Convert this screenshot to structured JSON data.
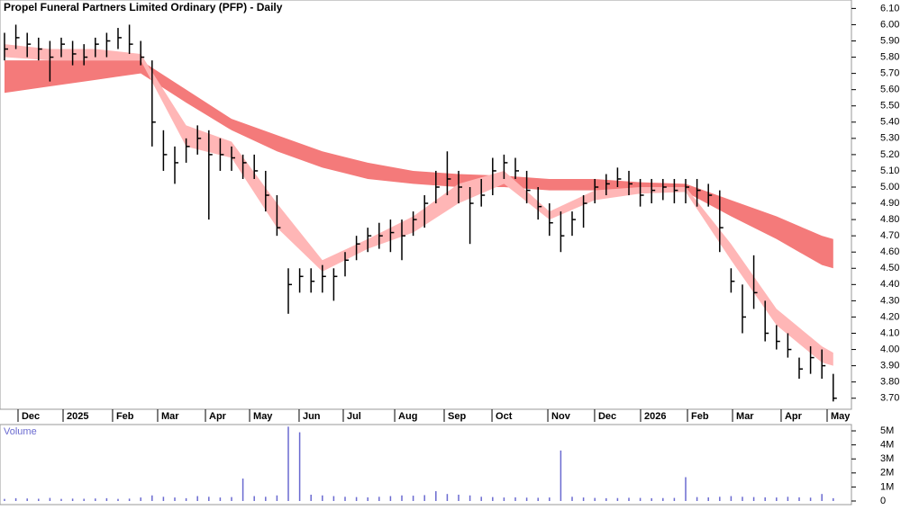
{
  "chart_data": [
    {
      "type": "ohlc",
      "title": "Propel Funeral Partners Limited Ordinary (PFP) - Daily",
      "color": "#000000",
      "high": [
        5.95,
        6.0,
        5.95,
        5.92,
        5.9,
        5.92,
        5.9,
        5.88,
        5.92,
        5.95,
        5.98,
        6.0,
        5.9,
        5.78,
        5.35,
        5.25,
        5.3,
        5.38,
        5.35,
        5.3,
        5.25,
        5.2,
        5.2,
        5.1,
        4.95,
        4.5,
        4.5,
        4.5,
        4.52,
        4.5,
        4.6,
        4.7,
        4.75,
        4.78,
        4.8,
        4.8,
        4.85,
        4.95,
        5.1,
        5.22,
        5.1,
        5.0,
        5.05,
        5.18,
        5.2,
        5.18,
        5.1,
        5.0,
        4.9,
        4.85,
        4.85,
        4.95,
        5.05,
        5.08,
        5.12,
        5.1,
        5.05,
        5.05,
        5.05,
        5.05,
        5.05,
        5.05,
        5.02,
        4.98,
        4.5,
        4.4,
        4.58,
        4.3,
        4.15,
        4.1,
        3.95,
        4.02,
        4.0,
        3.85
      ],
      "low": [
        5.78,
        5.85,
        5.8,
        5.78,
        5.65,
        5.8,
        5.75,
        5.75,
        5.8,
        5.8,
        5.85,
        5.82,
        5.75,
        5.25,
        5.1,
        5.02,
        5.15,
        5.2,
        4.8,
        5.1,
        5.1,
        5.05,
        5.05,
        4.85,
        4.7,
        4.22,
        4.35,
        4.35,
        4.35,
        4.3,
        4.45,
        4.55,
        4.6,
        4.62,
        4.6,
        4.55,
        4.7,
        4.75,
        4.9,
        4.95,
        4.9,
        4.65,
        4.88,
        4.95,
        5.05,
        5.05,
        4.9,
        4.8,
        4.7,
        4.6,
        4.7,
        4.75,
        4.9,
        4.95,
        5.0,
        4.95,
        4.88,
        4.9,
        4.92,
        4.9,
        4.9,
        4.88,
        4.88,
        4.6,
        4.35,
        4.1,
        4.25,
        4.05,
        4.0,
        3.95,
        3.82,
        3.85,
        3.82,
        3.68
      ],
      "close": [
        5.85,
        5.92,
        5.88,
        5.85,
        5.8,
        5.88,
        5.82,
        5.8,
        5.88,
        5.9,
        5.92,
        5.88,
        5.8,
        5.4,
        5.2,
        5.15,
        5.25,
        5.3,
        5.2,
        5.2,
        5.18,
        5.15,
        5.1,
        4.95,
        4.75,
        4.4,
        4.45,
        4.42,
        4.45,
        4.45,
        4.55,
        4.65,
        4.7,
        4.7,
        4.72,
        4.7,
        4.8,
        4.9,
        5.0,
        5.05,
        5.0,
        4.9,
        4.95,
        5.1,
        5.15,
        5.1,
        4.98,
        4.88,
        4.78,
        4.7,
        4.8,
        4.9,
        5.0,
        5.02,
        5.05,
        5.02,
        4.95,
        4.98,
        5.0,
        4.98,
        5.0,
        4.98,
        4.95,
        4.75,
        4.42,
        4.2,
        4.35,
        4.1,
        4.05,
        4.0,
        3.88,
        3.95,
        3.9,
        3.7
      ],
      "bands": [
        {
          "color": "#f47a7a",
          "x": [
            0,
            4,
            8,
            12,
            16,
            20,
            24,
            28,
            32,
            36,
            40,
            44,
            48,
            52,
            56,
            60,
            64,
            68,
            72,
            73
          ],
          "upper": [
            5.78,
            5.78,
            5.78,
            5.78,
            5.6,
            5.42,
            5.32,
            5.22,
            5.15,
            5.1,
            5.08,
            5.07,
            5.05,
            5.05,
            5.03,
            5.02,
            4.92,
            4.82,
            4.7,
            4.68
          ],
          "lower": [
            5.58,
            5.62,
            5.66,
            5.7,
            5.52,
            5.35,
            5.22,
            5.12,
            5.05,
            5.02,
            5.0,
            5.0,
            4.98,
            4.98,
            4.97,
            4.97,
            4.82,
            4.68,
            4.52,
            4.5
          ]
        },
        {
          "color": "#ffb6b6",
          "x": [
            0,
            4,
            8,
            12,
            16,
            20,
            24,
            28,
            32,
            36,
            40,
            44,
            48,
            52,
            56,
            60,
            64,
            68,
            72,
            73
          ],
          "upper": [
            5.88,
            5.85,
            5.85,
            5.82,
            5.38,
            5.28,
            4.9,
            4.55,
            4.68,
            4.82,
            5.02,
            5.1,
            4.85,
            4.98,
            5.0,
            5.0,
            4.65,
            4.25,
            4.02,
            3.98
          ],
          "lower": [
            5.8,
            5.78,
            5.78,
            5.78,
            5.25,
            5.18,
            4.75,
            4.48,
            4.62,
            4.72,
            4.9,
            5.02,
            4.8,
            4.92,
            4.96,
            4.97,
            4.55,
            4.15,
            3.92,
            3.9
          ]
        }
      ],
      "ylim": [
        3.632,
        6.152
      ],
      "yticks": [
        {
          "value": 3.7,
          "label": "3.70"
        },
        {
          "value": 3.8,
          "label": "3.80"
        },
        {
          "value": 3.9,
          "label": "3.90"
        },
        {
          "value": 4.0,
          "label": "4.00"
        },
        {
          "value": 4.1,
          "label": "4.10"
        },
        {
          "value": 4.2,
          "label": "4.20"
        },
        {
          "value": 4.3,
          "label": "4.30"
        },
        {
          "value": 4.4,
          "label": "4.40"
        },
        {
          "value": 4.5,
          "label": "4.50"
        },
        {
          "value": 4.6,
          "label": "4.60"
        },
        {
          "value": 4.7,
          "label": "4.70"
        },
        {
          "value": 4.8,
          "label": "4.80"
        },
        {
          "value": 4.9,
          "label": "4.90"
        },
        {
          "value": 5.0,
          "label": "5.00"
        },
        {
          "value": 5.1,
          "label": "5.10"
        },
        {
          "value": 5.2,
          "label": "5.20"
        },
        {
          "value": 5.3,
          "label": "5.30"
        },
        {
          "value": 5.4,
          "label": "5.40"
        },
        {
          "value": 5.5,
          "label": "5.50"
        },
        {
          "value": 5.6,
          "label": "5.60"
        },
        {
          "value": 5.7,
          "label": "5.70"
        },
        {
          "value": 5.8,
          "label": "5.80"
        },
        {
          "value": 5.9,
          "label": "5.90"
        },
        {
          "value": 6.0,
          "label": "6.00"
        },
        {
          "value": 6.1,
          "label": "6.10"
        }
      ],
      "xticks": [
        {
          "value": 1.19,
          "label": "Dec"
        },
        {
          "value": 5.16,
          "label": "2025"
        },
        {
          "value": 9.52,
          "label": "Feb"
        },
        {
          "value": 13.49,
          "label": "Mar"
        },
        {
          "value": 17.7,
          "label": "Apr"
        },
        {
          "value": 21.59,
          "label": "May"
        },
        {
          "value": 25.95,
          "label": "Jun"
        },
        {
          "value": 29.84,
          "label": "Jul"
        },
        {
          "value": 34.37,
          "label": "Aug"
        },
        {
          "value": 38.73,
          "label": "Sep"
        },
        {
          "value": 42.94,
          "label": "Oct"
        },
        {
          "value": 47.86,
          "label": "Nov"
        },
        {
          "value": 51.98,
          "label": "Dec"
        },
        {
          "value": 56.03,
          "label": "2026"
        },
        {
          "value": 60.16,
          "label": "Feb"
        },
        {
          "value": 64.13,
          "label": "Mar"
        },
        {
          "value": 68.41,
          "label": "Apr"
        },
        {
          "value": 72.46,
          "label": "May"
        }
      ]
    },
    {
      "type": "bar",
      "title": "Volume",
      "color": "#6a6ad0",
      "values": [
        150000,
        200000,
        180000,
        160000,
        220000,
        150000,
        170000,
        160000,
        180000,
        200000,
        150000,
        170000,
        250000,
        400000,
        300000,
        250000,
        200000,
        350000,
        300000,
        250000,
        280000,
        1600000,
        350000,
        300000,
        400000,
        5300000,
        4900000,
        450000,
        400000,
        350000,
        300000,
        280000,
        260000,
        300000,
        350000,
        400000,
        380000,
        420000,
        700000,
        500000,
        450000,
        400000,
        300000,
        280000,
        250000,
        260000,
        240000,
        230000,
        250000,
        3600000,
        300000,
        250000,
        220000,
        200000,
        210000,
        230000,
        220000,
        200000,
        210000,
        220000,
        1700000,
        280000,
        260000,
        300000,
        350000,
        300000,
        280000,
        260000,
        250000,
        300000,
        260000,
        240000,
        500000,
        200000
      ],
      "ylim": [
        0,
        5450000
      ],
      "yticks": [
        0,
        {
          "value": 1000000,
          "label": "1M"
        },
        {
          "value": 2000000,
          "label": "2M"
        },
        {
          "value": 3000000,
          "label": "3M"
        },
        {
          "value": 4000000,
          "label": "4M"
        },
        {
          "value": 5000000,
          "label": "5M"
        }
      ]
    }
  ]
}
